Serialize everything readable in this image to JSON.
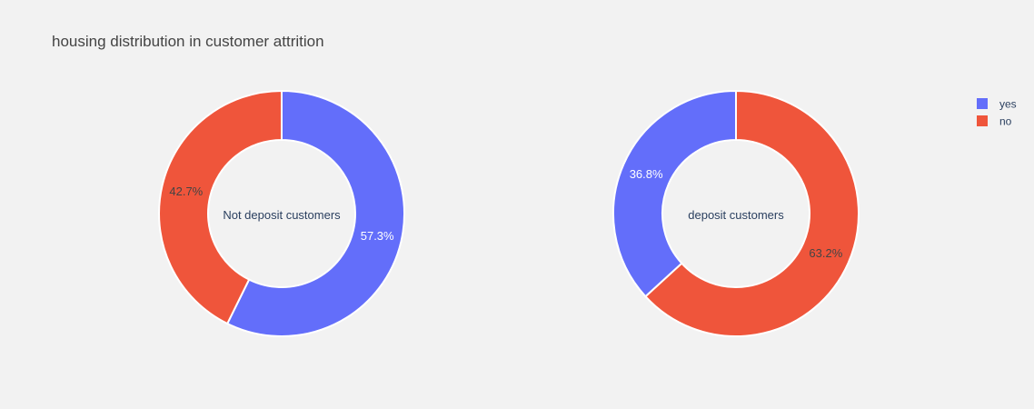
{
  "chart_data": {
    "type": "pie",
    "title": "housing distribution in customer attrition",
    "hole": true,
    "legend": {
      "placement": "top-right",
      "entries": [
        "yes",
        "no"
      ]
    },
    "colors": {
      "yes": "#636efa",
      "no": "#ef553b",
      "background": "#f2f2f2"
    },
    "pies": [
      {
        "center_label": "Not deposit customers",
        "slices": [
          {
            "label": "yes",
            "value": 57.3,
            "text": "57.3%"
          },
          {
            "label": "no",
            "value": 42.7,
            "text": "42.7%"
          }
        ]
      },
      {
        "center_label": "deposit customers",
        "slices": [
          {
            "label": "yes",
            "value": 36.8,
            "text": "36.8%"
          },
          {
            "label": "no",
            "value": 63.2,
            "text": "63.2%"
          }
        ]
      }
    ]
  }
}
